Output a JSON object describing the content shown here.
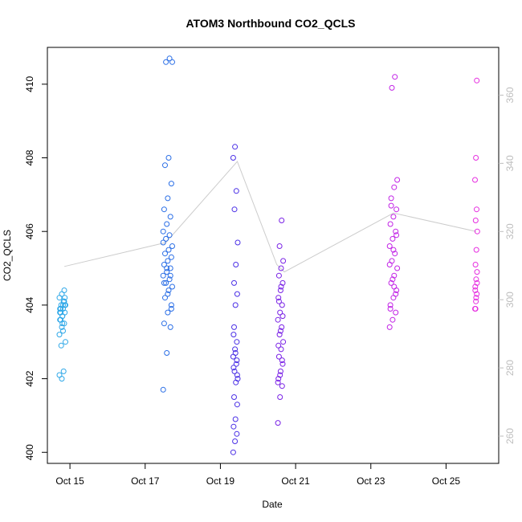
{
  "chart_data": {
    "type": "scatter",
    "title": "ATOM3 Northbound CO2_QCLS",
    "xlabel": "Date",
    "ylabel": "CO2_QCLS",
    "x_axis": {
      "ticks": [
        {
          "value": 15,
          "label": "Oct 15"
        },
        {
          "value": 17,
          "label": "Oct 17"
        },
        {
          "value": 19,
          "label": "Oct 19"
        },
        {
          "value": 21,
          "label": "Oct 21"
        },
        {
          "value": 23,
          "label": "Oct 23"
        },
        {
          "value": 25,
          "label": "Oct 25"
        }
      ],
      "range": [
        14.4,
        26.4
      ]
    },
    "y_axis_left": {
      "ticks": [
        {
          "value": 400,
          "label": "400"
        },
        {
          "value": 402,
          "label": "402"
        },
        {
          "value": 404,
          "label": "404"
        },
        {
          "value": 406,
          "label": "406"
        },
        {
          "value": 408,
          "label": "408"
        },
        {
          "value": 410,
          "label": "410"
        }
      ],
      "range": [
        399.7,
        411.0
      ]
    },
    "y_axis_right": {
      "ticks": [
        {
          "value": 260,
          "label": "260"
        },
        {
          "value": 280,
          "label": "280"
        },
        {
          "value": 300,
          "label": "300"
        },
        {
          "value": 320,
          "label": "320"
        },
        {
          "value": 340,
          "label": "340"
        },
        {
          "value": 360,
          "label": "360"
        }
      ],
      "range": [
        252,
        374
      ],
      "color": "#bdbdbd"
    },
    "series_colors": [
      "#2fa8e8",
      "#2a6ee6",
      "#4a2fe6",
      "#7a22e6",
      "#c223e6",
      "#e62ee0"
    ],
    "series": [
      {
        "day": 14.8,
        "spread": 0.16,
        "values": [
          403.2,
          403.4,
          403.5,
          403.6,
          403.7,
          403.8,
          403.8,
          403.9,
          404.0,
          404.0,
          404.1,
          404.2,
          404.3,
          404.4,
          403.9,
          403.7,
          404.0,
          403.6,
          403.3,
          403.0,
          402.9,
          402.2,
          402.1,
          402.0,
          404.1,
          403.8,
          403.5,
          404.2,
          403.9,
          404.0
        ]
      },
      {
        "day": 17.6,
        "spread": 0.24,
        "values": [
          401.7,
          402.7,
          403.4,
          403.5,
          403.8,
          404.0,
          404.2,
          404.4,
          404.5,
          404.6,
          404.7,
          404.8,
          404.9,
          405.0,
          405.1,
          405.2,
          405.3,
          405.4,
          405.5,
          405.6,
          405.8,
          405.9,
          406.0,
          406.2,
          406.4,
          406.6,
          406.9,
          407.3,
          407.8,
          408.0,
          410.6,
          410.6,
          410.7,
          405.7,
          405.0,
          404.8,
          404.6,
          404.3,
          403.9
        ]
      },
      {
        "day": 19.4,
        "spread": 0.12,
        "values": [
          400.0,
          400.3,
          400.5,
          400.7,
          400.9,
          401.3,
          401.5,
          401.9,
          402.0,
          402.2,
          402.4,
          402.6,
          402.8,
          403.0,
          403.2,
          404.0,
          404.3,
          404.6,
          405.1,
          405.7,
          406.6,
          407.1,
          408.0,
          408.3,
          402.5,
          402.3,
          402.7,
          402.1,
          403.4
        ]
      },
      {
        "day": 20.6,
        "spread": 0.14,
        "values": [
          400.8,
          401.5,
          401.8,
          402.0,
          402.2,
          402.4,
          402.6,
          402.8,
          403.0,
          403.2,
          403.4,
          403.6,
          403.8,
          404.0,
          404.2,
          404.4,
          404.6,
          404.8,
          405.0,
          405.2,
          405.6,
          406.3,
          401.9,
          402.1,
          402.5,
          402.9,
          403.3,
          403.7,
          404.1,
          404.5
        ]
      },
      {
        "day": 23.6,
        "spread": 0.2,
        "values": [
          403.4,
          403.6,
          403.8,
          404.0,
          404.2,
          404.4,
          404.6,
          404.8,
          405.0,
          405.2,
          405.4,
          405.6,
          405.8,
          406.0,
          406.2,
          406.4,
          406.6,
          406.9,
          407.2,
          407.4,
          409.9,
          410.2,
          405.1,
          404.7,
          404.3,
          403.9,
          405.5,
          405.9,
          406.7,
          404.5
        ]
      },
      {
        "day": 25.8,
        "spread": 0.06,
        "values": [
          403.9,
          404.1,
          404.3,
          404.5,
          404.7,
          404.9,
          405.1,
          405.5,
          406.0,
          406.3,
          406.6,
          407.4,
          408.0,
          410.1,
          404.4,
          404.2,
          404.6,
          403.9
        ]
      }
    ],
    "trend_line": [
      [
        14.85,
        405.05
      ],
      [
        17.55,
        405.7
      ],
      [
        19.45,
        407.9
      ],
      [
        20.5,
        405.1
      ],
      [
        20.7,
        404.9
      ],
      [
        23.6,
        406.5
      ],
      [
        25.8,
        406.0
      ]
    ],
    "grid": false,
    "legend": "none"
  }
}
